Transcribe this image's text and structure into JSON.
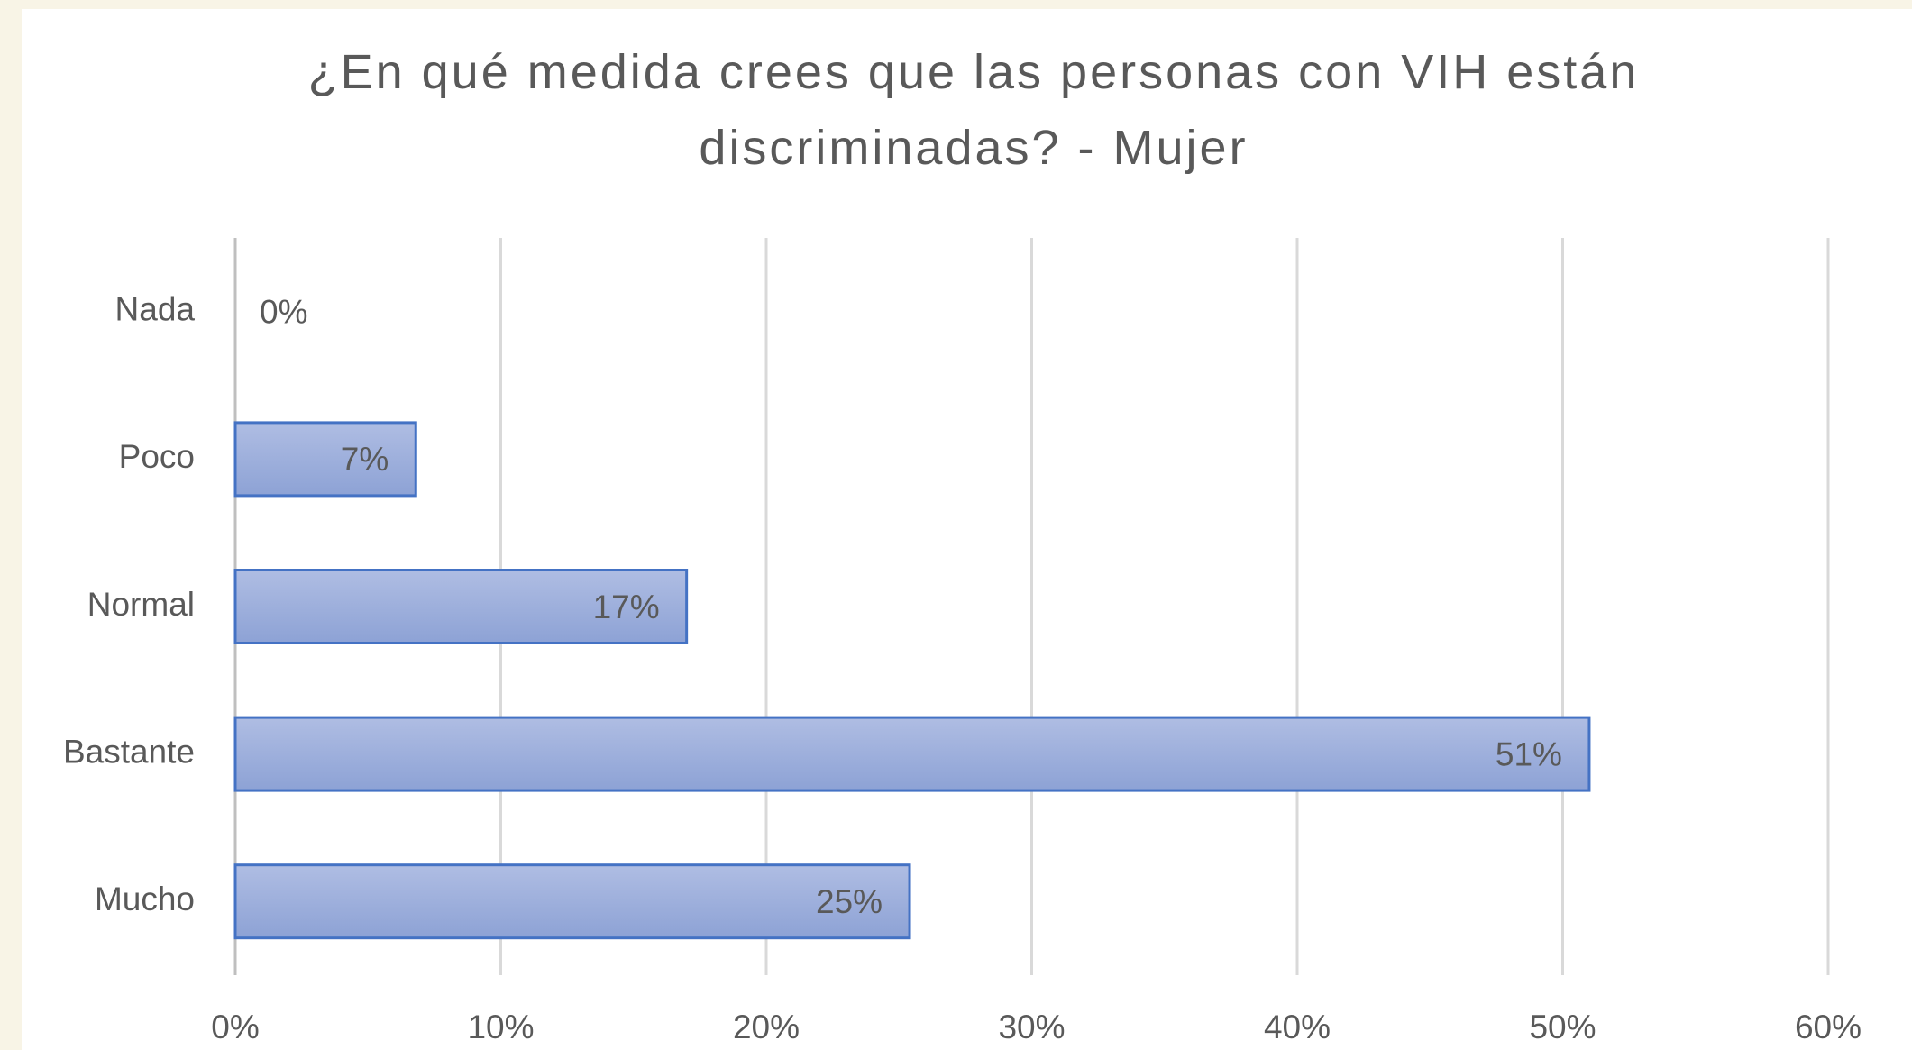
{
  "chart_data": {
    "type": "bar",
    "title": "¿En qué medida crees que las personas con VIH están discriminadas? - Mujer",
    "categories": [
      "Nada",
      "Poco",
      "Normal",
      "Bastante",
      "Mucho"
    ],
    "values": [
      0,
      6.8,
      17,
      51,
      25.4
    ],
    "value_labels": [
      "0%",
      "7%",
      "17%",
      "51%",
      "25%"
    ],
    "color": "#4472c4",
    "xlim": [
      0,
      60
    ],
    "xticks": [
      {
        "value": 0,
        "label": "0%"
      },
      {
        "value": 10,
        "label": "10%"
      },
      {
        "value": 20,
        "label": "20%"
      },
      {
        "value": 30,
        "label": "30%"
      },
      {
        "value": 40,
        "label": "40%"
      },
      {
        "value": 50,
        "label": "50%"
      },
      {
        "value": 60,
        "label": "60%"
      }
    ],
    "grid": true
  }
}
